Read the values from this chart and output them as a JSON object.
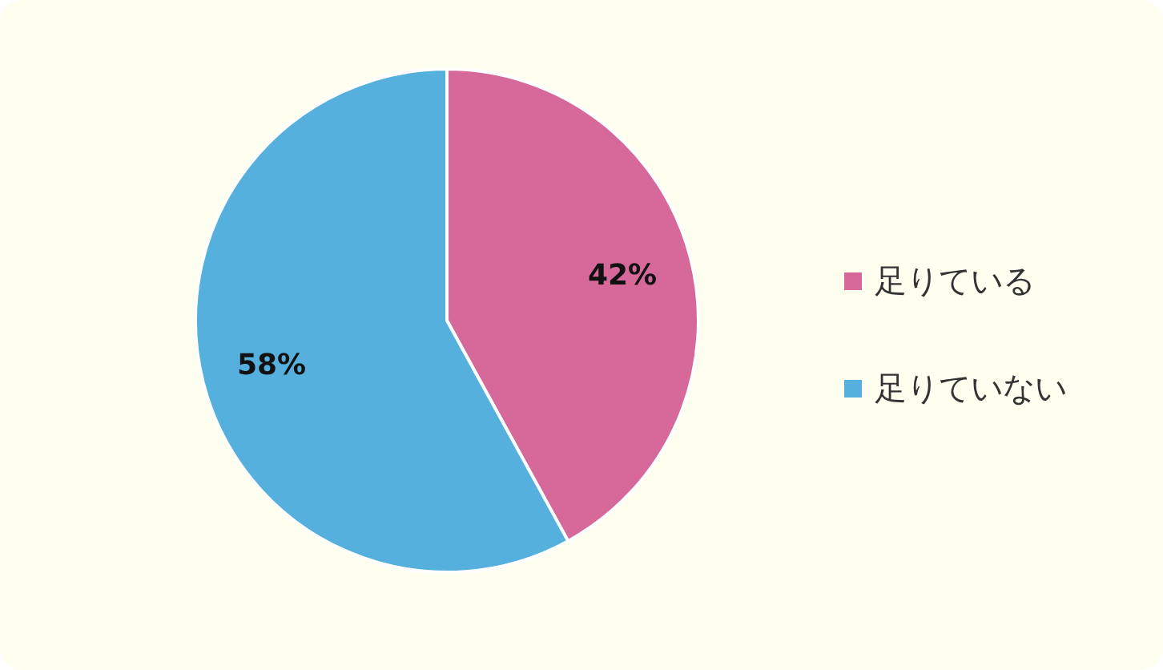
{
  "chart_data": {
    "type": "pie",
    "categories": [
      "足りている",
      "足りていない"
    ],
    "values": [
      42,
      58
    ],
    "value_labels": [
      "42%",
      "58%"
    ],
    "colors": [
      "#d6689a",
      "#55b0de"
    ],
    "legend": "right"
  }
}
